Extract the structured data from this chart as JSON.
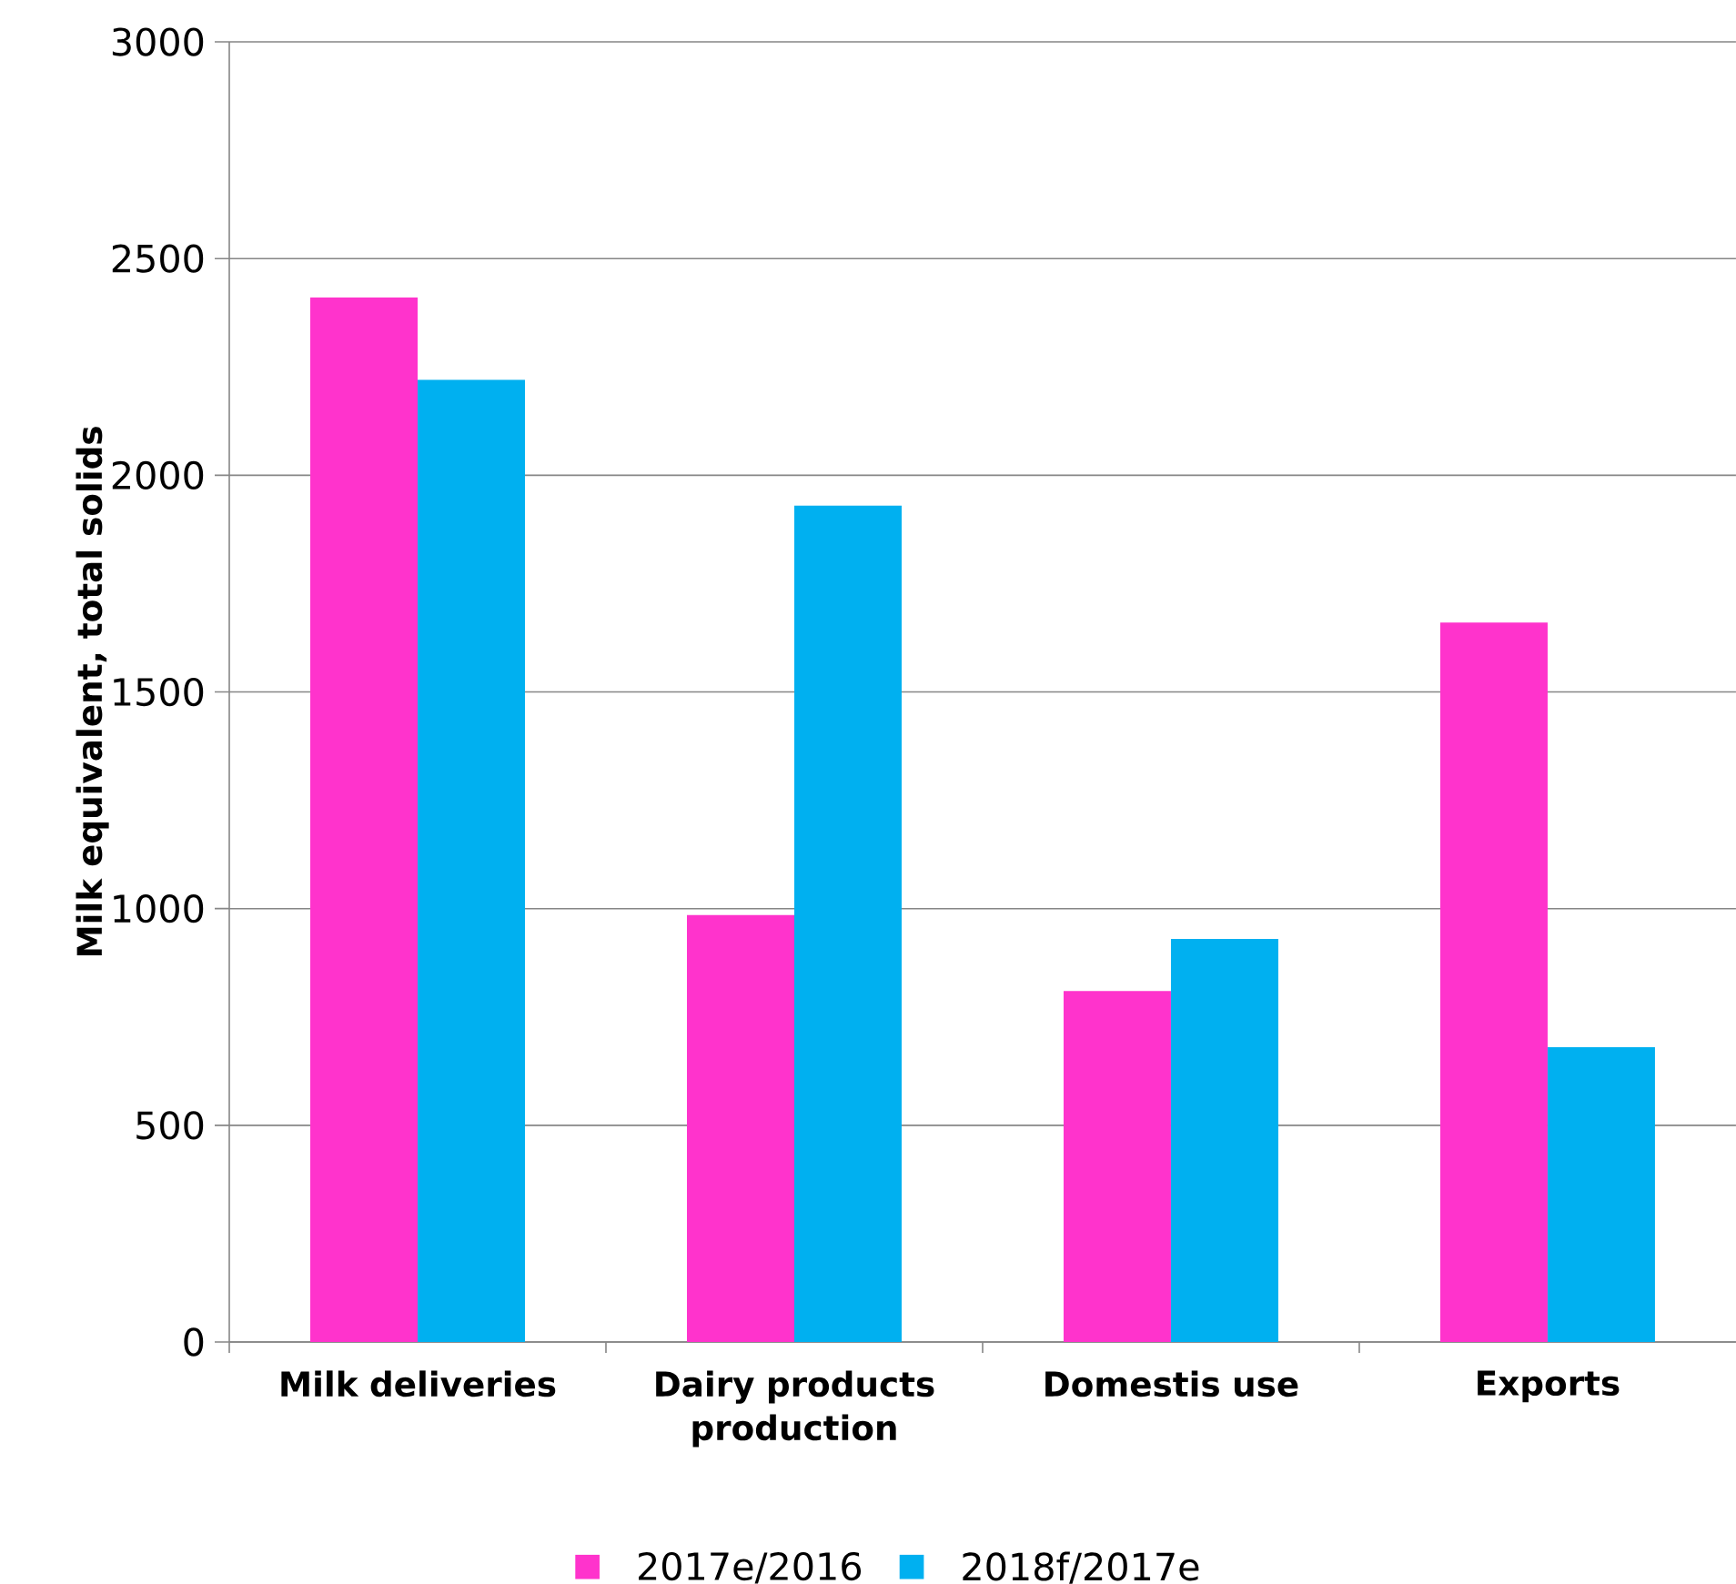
{
  "chart_data": {
    "type": "bar",
    "ylabel": "Milk equivalent, total solids",
    "categories": [
      "Milk deliveries",
      "Dairy products production",
      "Domestis use",
      "Exports"
    ],
    "series": [
      {
        "name": "2017e/2016",
        "color": "#ff33cc",
        "values": [
          2410,
          985,
          810,
          1660
        ]
      },
      {
        "name": "2018f/2017e",
        "color": "#00b0f0",
        "values": [
          2220,
          1930,
          930,
          680
        ]
      }
    ],
    "ylim": [
      0,
      3000
    ],
    "yticks": [
      0,
      500,
      1000,
      1500,
      2000,
      2500,
      3000
    ],
    "grid": "y",
    "legend": "bottom"
  }
}
